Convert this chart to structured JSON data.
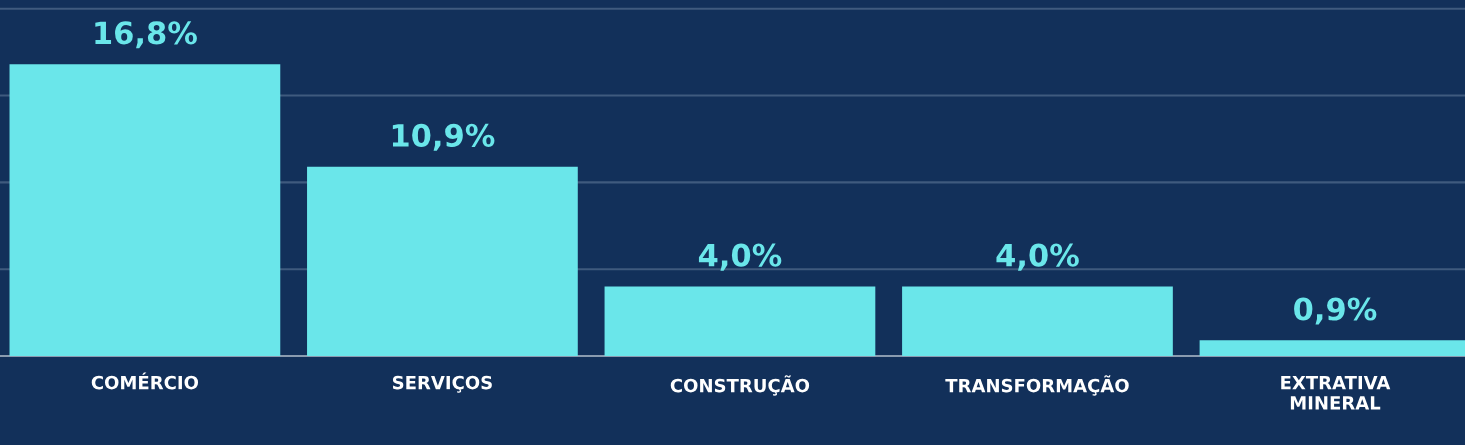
{
  "chart_data": {
    "type": "bar",
    "categories": [
      "COMÉRCIO",
      "SERVIÇOS",
      "CONSTRUÇÃO",
      "TRANSFORMAÇÃO",
      "EXTRATIVA\nMINERAL"
    ],
    "values": [
      16.8,
      10.9,
      4.0,
      4.0,
      0.9
    ],
    "value_labels": [
      "16,8%",
      "10,9%",
      "4,0%",
      "4,0%",
      "0,9%"
    ],
    "color": "#6ae6ea",
    "ylim": [
      0,
      20.5
    ],
    "yticks": [
      {
        "value": 5,
        "label": null
      },
      {
        "value": 10,
        "label": null
      },
      {
        "value": 15,
        "label": null
      },
      {
        "value": 20,
        "label": null
      }
    ],
    "grid": "y",
    "tick_labels": "x"
  }
}
